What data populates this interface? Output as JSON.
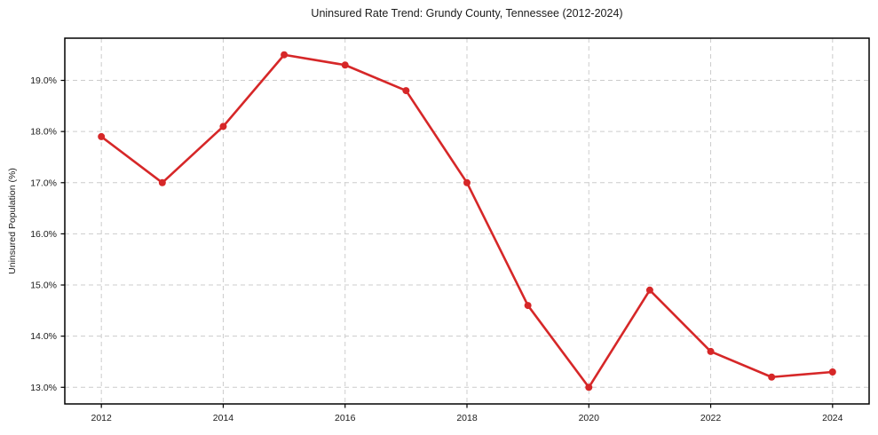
{
  "chart_data": {
    "type": "line",
    "title": "Uninsured Rate Trend: Grundy County, Tennessee (2012-2024)",
    "xlabel": "",
    "ylabel": "Uninsured Population (%)",
    "x": [
      2012,
      2013,
      2014,
      2015,
      2016,
      2017,
      2018,
      2019,
      2020,
      2021,
      2022,
      2023,
      2024
    ],
    "values": [
      17.9,
      17.0,
      18.1,
      19.5,
      19.3,
      18.8,
      17.0,
      14.6,
      13.0,
      14.9,
      13.7,
      13.2,
      13.3
    ],
    "xticks": {
      "values": [
        2012,
        2014,
        2016,
        2018,
        2020,
        2022,
        2024
      ],
      "labels": [
        "2012",
        "2014",
        "2016",
        "2018",
        "2020",
        "2022",
        "2024"
      ]
    },
    "yticks": {
      "values": [
        13,
        14,
        15,
        16,
        17,
        18,
        19
      ],
      "labels": [
        "13.0%",
        "14.0%",
        "15.0%",
        "16.0%",
        "17.0%",
        "18.0%",
        "19.0%"
      ]
    },
    "xlim": [
      2011.4,
      2024.6
    ],
    "ylim": [
      12.675,
      19.825
    ],
    "grid": true,
    "grid_style": "dashed",
    "legend": "none",
    "marker": "circle",
    "colors": {
      "line": "#d62728",
      "grid": "#cccccc",
      "axis": "#000000",
      "text": "#1a1a1a",
      "background": "#ffffff"
    }
  }
}
